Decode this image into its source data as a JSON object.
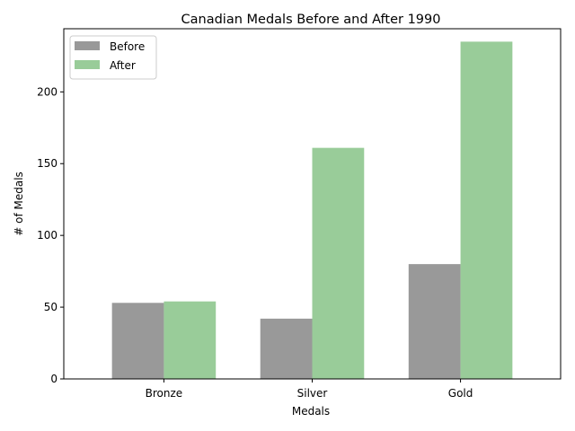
{
  "chart_data": {
    "type": "bar",
    "title": "Canadian Medals Before and After 1990",
    "xlabel": "Medals",
    "ylabel": "# of Medals",
    "categories": [
      "Bronze",
      "Silver",
      "Gold"
    ],
    "series": [
      {
        "name": "Before",
        "values": [
          53,
          42,
          80
        ],
        "color": "#999999"
      },
      {
        "name": "After",
        "values": [
          54,
          161,
          235
        ],
        "color": "#99cc99"
      }
    ],
    "ylim": [
      0,
      244
    ],
    "yticks": [
      0,
      50,
      100,
      150,
      200
    ],
    "grid": false,
    "legend_position": "top-left"
  }
}
